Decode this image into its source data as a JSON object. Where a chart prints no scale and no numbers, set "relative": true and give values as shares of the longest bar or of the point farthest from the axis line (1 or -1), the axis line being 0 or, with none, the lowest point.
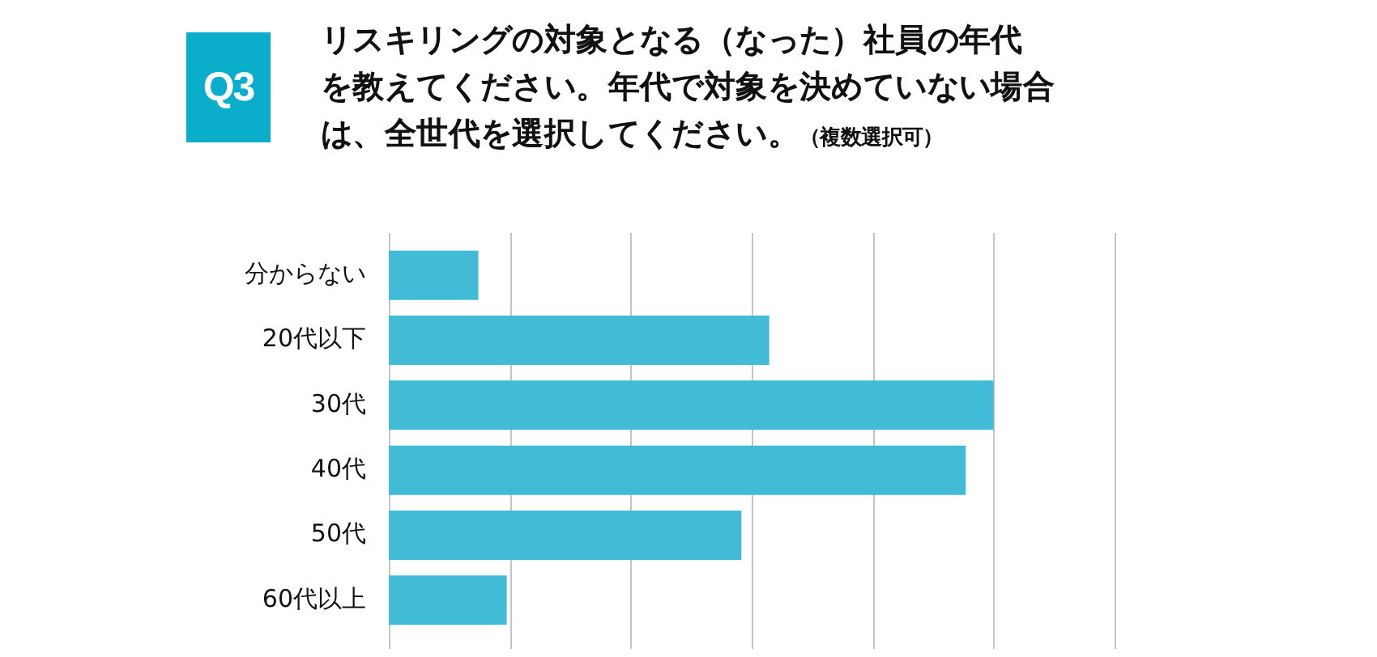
{
  "chart_data": {
    "type": "bar",
    "orientation": "horizontal",
    "relative": true,
    "title": "リスキリングの対象となる（なった）社員の年代を教えてください。年代で対象を決めていない場合は、全世代を選択してください。",
    "subtitle": "（複数選択可）",
    "annotations": [
      "Q3"
    ],
    "categories": [
      "分からない",
      "20代以下",
      "30代",
      "40代",
      "50代",
      "60代以上"
    ],
    "values": [
      0.148,
      0.629,
      1,
      0.954,
      0.583,
      0.195
    ],
    "color": "#42bcd6",
    "grid": "x",
    "legend": false
  }
}
